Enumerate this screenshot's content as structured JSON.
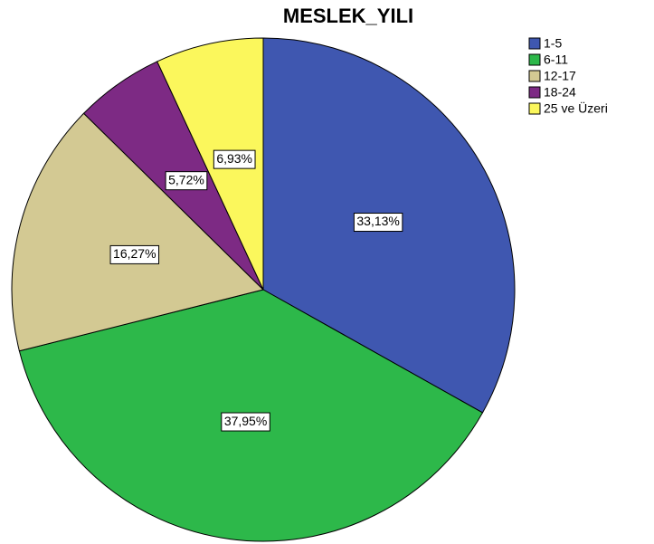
{
  "chart_data": {
    "type": "pie",
    "title": "MESLEK_YILI",
    "categories": [
      "1-5",
      "6-11",
      "12-17",
      "18-24",
      "25 ve Üzeri"
    ],
    "values": [
      33.13,
      37.95,
      16.27,
      5.72,
      6.93
    ],
    "value_labels": [
      "33,13%",
      "37,95%",
      "16,27%",
      "5,72%",
      "6,93%"
    ],
    "colors": [
      "#3f57b0",
      "#2db84a",
      "#d3c993",
      "#7d2a84",
      "#fbf75c"
    ],
    "legend": "top-right"
  }
}
